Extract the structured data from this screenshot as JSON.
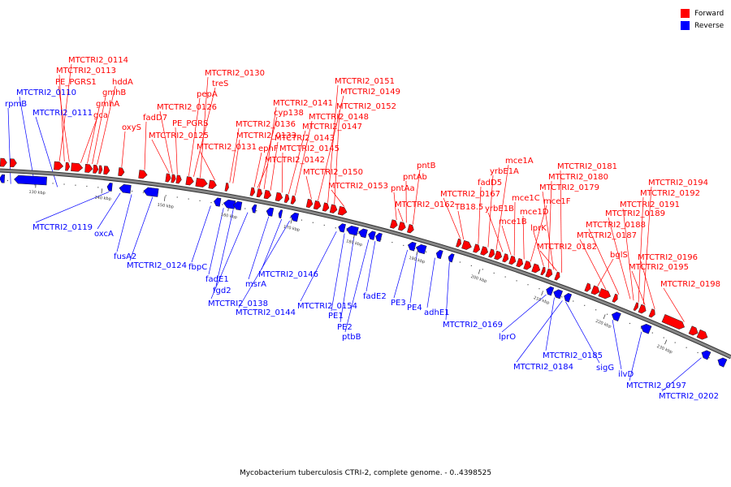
{
  "title": "Mycobacterium tuberculosis CTRI-2, complete genome. - 0..4398525",
  "legend": [
    {
      "label": "Forward",
      "color": "#ff0000"
    },
    {
      "label": "Reverse",
      "color": "#0000ff"
    }
  ],
  "colors": {
    "forward": "#ff0000",
    "reverse": "#0000ff",
    "backbone": "#888888"
  },
  "ticks": [
    "130 kbp",
    "140 kbp",
    "150 kbp",
    "160 kbp",
    "170 kbp",
    "180 kbp",
    "190 kbp",
    "200 kbp",
    "210 kbp",
    "220 kbp",
    "230 kbp"
  ],
  "forward_labels": [
    "MTCTRI2_0114",
    "MTCTRI2_0113",
    "PE_PGRS1",
    "hddA",
    "gmhB",
    "gmhA",
    "gca",
    "oxyS",
    "fadD7",
    "MTCTRI2_0126",
    "PE_PGRS",
    "MTCTRI2_0125",
    "MTCTRI2_0130",
    "treS",
    "pepA",
    "MTCTRI2_0133",
    "MTCTRI2_0131",
    "MTCTRI2_0136",
    "MTCTRI2_0141",
    "cyp138",
    "ephF",
    "MTCTRI2_0142",
    "MTCTRI2_0143",
    "MTCTRI2_0145",
    "MTCTRI2_0147",
    "MTCTRI2_0148",
    "MTCTRI2_0151",
    "MTCTRI2_0149",
    "MTCTRI2_0152",
    "MTCTRI2_0150",
    "MTCTRI2_0153",
    "pntB",
    "pntAb",
    "pntAa",
    "MTCTRI2_0162",
    "MTCTRI2_0167",
    "TB18.5",
    "fadD5",
    "yrbE1A",
    "mce1A",
    "yrbE1B",
    "mce1B",
    "mce1C",
    "mce1D",
    "mce1F",
    "lprK",
    "MTCTRI2_0181",
    "MTCTRI2_0180",
    "MTCTRI2_0179",
    "MTCTRI2_0182",
    "MTCTRI2_0194",
    "MTCTRI2_0192",
    "MTCTRI2_0191",
    "MTCTRI2_0189",
    "MTCTRI2_0188",
    "MTCTRI2_0187",
    "bglS",
    "MTCTRI2_0196",
    "MTCTRI2_0195",
    "MTCTRI2_0198"
  ],
  "reverse_labels": [
    "rpmB",
    "MTCTRI2_0110",
    "MTCTRI2_0111",
    "MTCTRI2_0119",
    "oxcA",
    "fusA2",
    "MTCTRI2_0124",
    "fbpC",
    "fadE1",
    "fgd2",
    "MTCTRI2_0138",
    "msrA",
    "MTCTRI2_0146",
    "MTCTRI2_0144",
    "MTCTRI2_0154",
    "PE1",
    "PE2",
    "ptbB",
    "fadE2",
    "PE3",
    "PE4",
    "adhE1",
    "MTCTRI2_0169",
    "lprO",
    "MTCTRI2_0185",
    "MTCTRI2_0184",
    "sigG",
    "ilvD",
    "MTCTRI2_0197",
    "MTCTRI2_0202"
  ]
}
